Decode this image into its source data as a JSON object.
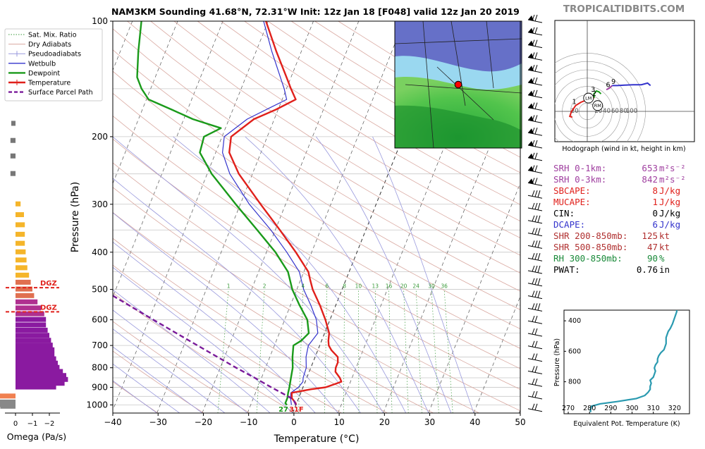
{
  "header": {
    "title": "NAM3KM Sounding 41.68°N, 72.31°W Init: 12z Jan 18 [F048] valid 12z Jan 20 2019",
    "brand": "TROPICALTIDBITS.COM"
  },
  "colors": {
    "temperature": "#e0201b",
    "dewpoint": "#1a9a1a",
    "wetbulb": "#3333cc",
    "parcel": "#7a1a9a",
    "dgz": "#e0201b"
  },
  "legend": [
    {
      "label": "Sat. Mix. Ratio",
      "style": "dotted-green"
    },
    {
      "label": "Dry Adiabats",
      "style": "thin-tan"
    },
    {
      "label": "Pseudoadiabats",
      "style": "thin-blue-tick"
    },
    {
      "label": "Wetbulb",
      "style": "blue"
    },
    {
      "label": "Dewpoint",
      "style": "green"
    },
    {
      "label": "Temperature",
      "style": "red"
    },
    {
      "label": "Surface Parcel Path",
      "style": "purple-dashed"
    }
  ],
  "chart_data": [
    {
      "type": "line",
      "name": "skew-t",
      "xlabel": "Temperature (°C)",
      "ylabel": "Pressure (hPa)",
      "xlim": [
        -40,
        50
      ],
      "ylim": [
        1050,
        100
      ],
      "xticks": [
        "−40",
        "−30",
        "−20",
        "−10",
        "0",
        "10",
        "20",
        "30",
        "40",
        "50"
      ],
      "yticks": [
        "100",
        "200",
        "300",
        "400",
        "500",
        "600",
        "700",
        "800",
        "900",
        "1000"
      ],
      "mixing_ratio_labels": [
        "1",
        "2",
        "4",
        "6",
        "8",
        "10",
        "13",
        "16",
        "20",
        "24",
        "30",
        "36"
      ],
      "surface_labels": {
        "dewpoint": "27",
        "temperature": "31F"
      },
      "series": [
        {
          "name": "Temperature",
          "points": [
            [
              1000,
              0.0
            ],
            [
              990,
              -0.2
            ],
            [
              960,
              -1.5
            ],
            [
              930,
              -2.0
            ],
            [
              910,
              2.0
            ],
            [
              900,
              5.0
            ],
            [
              880,
              7.0
            ],
            [
              870,
              8.0
            ],
            [
              850,
              7.3
            ],
            [
              820,
              5.8
            ],
            [
              800,
              5.5
            ],
            [
              775,
              5.5
            ],
            [
              750,
              5.0
            ],
            [
              720,
              3.0
            ],
            [
              700,
              2.0
            ],
            [
              680,
              1.5
            ],
            [
              650,
              1.0
            ],
            [
              600,
              -1.0
            ],
            [
              550,
              -3.5
            ],
            [
              500,
              -6.5
            ],
            [
              470,
              -8.0
            ],
            [
              450,
              -9.0
            ],
            [
              400,
              -13.5
            ],
            [
              350,
              -19.0
            ],
            [
              300,
              -25.5
            ],
            [
              250,
              -33.0
            ],
            [
              220,
              -37.0
            ],
            [
              200,
              -38.0
            ],
            [
              180,
              -34.5
            ],
            [
              170,
              -30.5
            ],
            [
              160,
              -27.0
            ],
            [
              150,
              -29.0
            ],
            [
              140,
              -31.0
            ],
            [
              120,
              -35.5
            ],
            [
              100,
              -40.5
            ]
          ]
        },
        {
          "name": "Dewpoint",
          "points": [
            [
              1000,
              -2.0
            ],
            [
              990,
              -2.5
            ],
            [
              960,
              -2.5
            ],
            [
              930,
              -2.8
            ],
            [
              900,
              -3.0
            ],
            [
              850,
              -3.5
            ],
            [
              800,
              -4.0
            ],
            [
              750,
              -5.0
            ],
            [
              700,
              -5.8
            ],
            [
              680,
              -4.5
            ],
            [
              650,
              -3.5
            ],
            [
              600,
              -5.0
            ],
            [
              550,
              -8.0
            ],
            [
              500,
              -11.0
            ],
            [
              450,
              -13.5
            ],
            [
              400,
              -18.0
            ],
            [
              350,
              -24.0
            ],
            [
              300,
              -31.0
            ],
            [
              250,
              -39.0
            ],
            [
              220,
              -43.5
            ],
            [
              200,
              -44.0
            ],
            [
              190,
              -41.0
            ],
            [
              180,
              -48.0
            ],
            [
              170,
              -53.5
            ],
            [
              160,
              -59.5
            ],
            [
              150,
              -62.0
            ],
            [
              140,
              -64.0
            ],
            [
              120,
              -66.0
            ],
            [
              100,
              -68.0
            ]
          ]
        },
        {
          "name": "Wetbulb",
          "points": [
            [
              1000,
              -1.0
            ],
            [
              960,
              -1.8
            ],
            [
              930,
              -2.2
            ],
            [
              900,
              -1.0
            ],
            [
              870,
              -0.5
            ],
            [
              850,
              -0.8
            ],
            [
              800,
              -1.0
            ],
            [
              750,
              -2.0
            ],
            [
              700,
              -2.5
            ],
            [
              650,
              -1.5
            ],
            [
              600,
              -3.0
            ],
            [
              550,
              -5.5
            ],
            [
              500,
              -8.5
            ],
            [
              450,
              -11.0
            ],
            [
              400,
              -15.5
            ],
            [
              350,
              -21.0
            ],
            [
              300,
              -28.0
            ],
            [
              250,
              -35.0
            ],
            [
              220,
              -38.5
            ],
            [
              200,
              -39.5
            ],
            [
              180,
              -36.0
            ],
            [
              160,
              -29.0
            ],
            [
              150,
              -30.5
            ],
            [
              120,
              -36.5
            ],
            [
              100,
              -41.0
            ]
          ]
        },
        {
          "name": "Surface Parcel Path",
          "points": [
            [
              1000,
              0.0
            ],
            [
              970,
              -1.0
            ],
            [
              950,
              -2.5
            ],
            [
              900,
              -7.0
            ],
            [
              850,
              -11.5
            ],
            [
              800,
              -16.5
            ],
            [
              700,
              -27.0
            ],
            [
              600,
              -39.0
            ],
            [
              500,
              -53.0
            ],
            [
              400,
              -70.0
            ],
            [
              300,
              -92.0
            ]
          ]
        }
      ]
    },
    {
      "type": "bar",
      "name": "omega",
      "xlabel": "Omega (Pa/s)",
      "xticks": [
        "0",
        "−1",
        "−2"
      ],
      "dgz_label": "DGZ",
      "dgz_levels_hPa": [
        495,
        572
      ],
      "bars": [
        [
          1010,
          0.9
        ],
        [
          1000,
          1.0
        ],
        [
          990,
          1.1
        ],
        [
          985,
          1.2
        ],
        [
          950,
          1.6
        ],
        [
          900,
          -2.4
        ],
        [
          880,
          -2.9
        ],
        [
          860,
          -3.1
        ],
        [
          840,
          -3.0
        ],
        [
          820,
          -2.8
        ],
        [
          800,
          -2.6
        ],
        [
          780,
          -2.5
        ],
        [
          760,
          -2.4
        ],
        [
          740,
          -2.3
        ],
        [
          720,
          -2.3
        ],
        [
          700,
          -2.2
        ],
        [
          680,
          -2.1
        ],
        [
          660,
          -2.0
        ],
        [
          640,
          -1.9
        ],
        [
          620,
          -1.8
        ],
        [
          600,
          -1.8
        ],
        [
          580,
          -1.7
        ],
        [
          560,
          -1.5
        ],
        [
          540,
          -1.3
        ],
        [
          520,
          -1.1
        ],
        [
          500,
          -1.0
        ],
        [
          480,
          -0.9
        ],
        [
          460,
          -0.8
        ],
        [
          440,
          -0.7
        ],
        [
          420,
          -0.65
        ],
        [
          400,
          -0.6
        ],
        [
          380,
          -0.55
        ],
        [
          360,
          -0.55
        ],
        [
          340,
          -0.55
        ],
        [
          320,
          -0.5
        ],
        [
          300,
          -0.3
        ],
        [
          250,
          0.3
        ],
        [
          225,
          0.3
        ],
        [
          205,
          0.3
        ],
        [
          185,
          0.25
        ]
      ]
    },
    {
      "type": "line",
      "name": "hodograph",
      "caption": "Hodograph (wind in kt, height in km)",
      "rings": [
        "20",
        "40",
        "60",
        "80",
        "100"
      ],
      "height_labels": [
        {
          "label": "1",
          "u": -31,
          "v": 14
        },
        {
          "label": "2",
          "u": 17,
          "v": 34
        },
        {
          "label": "3",
          "u": 14,
          "v": 44
        },
        {
          "label": "6",
          "u": 50,
          "v": 55
        },
        {
          "label": "9",
          "u": 63,
          "v": 63
        }
      ],
      "markers": [
        {
          "label": "LM",
          "u": 3,
          "v": 32
        },
        {
          "label": "RM",
          "u": 25,
          "v": 14
        }
      ],
      "series": [
        {
          "color": "#e0201b",
          "points": [
            [
              -36,
              -14
            ],
            [
              -42,
              -12
            ],
            [
              -38,
              0
            ],
            [
              -32,
              8
            ],
            [
              -28,
              14
            ],
            [
              -15,
              22
            ],
            [
              0,
              28
            ],
            [
              10,
              31
            ],
            [
              17,
              33
            ]
          ]
        },
        {
          "color": "#1a9a1a",
          "points": [
            [
              17,
              33
            ],
            [
              16,
              42
            ],
            [
              22,
              49
            ],
            [
              28,
              47
            ],
            [
              33,
              42
            ]
          ]
        },
        {
          "color": "#a040a0",
          "points": [
            [
              46,
              52
            ],
            [
              53,
              56
            ],
            [
              60,
              62
            ]
          ]
        },
        {
          "color": "#3333cc",
          "points": [
            [
              60,
              62
            ],
            [
              72,
              62
            ],
            [
              90,
              63
            ],
            [
              110,
              64
            ],
            [
              130,
              64
            ],
            [
              145,
              68
            ],
            [
              152,
              62
            ]
          ]
        }
      ]
    },
    {
      "type": "line",
      "name": "theta-e",
      "xlabel": "Equivalent Pot. Temperature (K)",
      "ylabel": "Pressure (hPa)",
      "xlim": [
        268,
        327
      ],
      "ylim": [
        1010,
        330
      ],
      "xticks": [
        "270",
        "280",
        "290",
        "300",
        "310",
        "320"
      ],
      "yticks": [
        "400",
        "600",
        "800"
      ],
      "series": [
        {
          "color": "#2a9ab0",
          "points": [
            [
              1000,
              280.5
            ],
            [
              980,
              280.5
            ],
            [
              960,
              281.0
            ],
            [
              945,
              285.0
            ],
            [
              930,
              293.0
            ],
            [
              910,
              302.0
            ],
            [
              890,
              306.0
            ],
            [
              870,
              307.5
            ],
            [
              850,
              308.5
            ],
            [
              830,
              308.5
            ],
            [
              810,
              309.0
            ],
            [
              790,
              308.5
            ],
            [
              770,
              310.0
            ],
            [
              750,
              310.5
            ],
            [
              730,
              311.0
            ],
            [
              710,
              310.5
            ],
            [
              690,
              311.0
            ],
            [
              670,
              312.0
            ],
            [
              650,
              312.0
            ],
            [
              630,
              312.5
            ],
            [
              610,
              313.5
            ],
            [
              590,
              315.0
            ],
            [
              570,
              315.5
            ],
            [
              550,
              316.0
            ],
            [
              530,
              316.0
            ],
            [
              510,
              316.0
            ],
            [
              490,
              316.5
            ],
            [
              470,
              317.0
            ],
            [
              450,
              318.0
            ],
            [
              420,
              319.0
            ],
            [
              400,
              319.5
            ],
            [
              380,
              320.0
            ],
            [
              360,
              320.5
            ],
            [
              340,
              321.0
            ],
            [
              330,
              321.0
            ]
          ]
        }
      ]
    }
  ],
  "indices": [
    {
      "label": "SRH 0-1km:",
      "value": "653",
      "unit": "m²s⁻²",
      "color": "#a040a0"
    },
    {
      "label": "SRH 0-3km:",
      "value": "842",
      "unit": "m²s⁻²",
      "color": "#a040a0"
    },
    {
      "label": "SBCAPE:",
      "value": "8",
      "unit": "J/kg",
      "color": "#e0201b"
    },
    {
      "label": "MUCAPE:",
      "value": "1",
      "unit": "J/kg",
      "color": "#e0201b"
    },
    {
      "label": "CIN:",
      "value": "0",
      "unit": "J/kg",
      "color": "#000000"
    },
    {
      "label": "DCAPE:",
      "value": "6",
      "unit": "J/kg",
      "color": "#3333cc"
    },
    {
      "label": "SHR 200-850mb:",
      "value": "125",
      "unit": "kt",
      "color": "#b03030"
    },
    {
      "label": "SHR 500-850mb:",
      "value": "47",
      "unit": "kt",
      "color": "#b03030"
    },
    {
      "label": "RH 300-850mb:",
      "value": "90",
      "unit": "%",
      "color": "#1a8a3a"
    },
    {
      "label": "PWAT:",
      "value": "0.76",
      "unit": "in",
      "color": "#000000"
    }
  ],
  "map_inset": {
    "icon": "radar-map-icon",
    "marker": "location-dot-icon",
    "marker_color": "#ff0000"
  }
}
